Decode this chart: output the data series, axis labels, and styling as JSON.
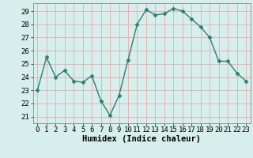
{
  "x": [
    0,
    1,
    2,
    3,
    4,
    5,
    6,
    7,
    8,
    9,
    10,
    11,
    12,
    13,
    14,
    15,
    16,
    17,
    18,
    19,
    20,
    21,
    22,
    23
  ],
  "y": [
    23.0,
    25.5,
    24.0,
    24.5,
    23.7,
    23.6,
    24.1,
    22.2,
    21.1,
    22.6,
    25.3,
    28.0,
    29.1,
    28.7,
    28.8,
    29.2,
    29.0,
    28.4,
    27.8,
    27.0,
    25.2,
    25.2,
    24.3,
    23.7
  ],
  "line_color": "#2e7d74",
  "marker": "D",
  "marker_size": 2.5,
  "bg_color": "#d6efec",
  "grid_color": "#e8aaaa",
  "xlabel": "Humidex (Indice chaleur)",
  "ylim": [
    20.5,
    29.6
  ],
  "yticks": [
    21,
    22,
    23,
    24,
    25,
    26,
    27,
    28,
    29
  ],
  "xticks": [
    0,
    1,
    2,
    3,
    4,
    5,
    6,
    7,
    8,
    9,
    10,
    11,
    12,
    13,
    14,
    15,
    16,
    17,
    18,
    19,
    20,
    21,
    22,
    23
  ],
  "tick_label_fontsize": 6.5,
  "xlabel_fontsize": 7.5
}
